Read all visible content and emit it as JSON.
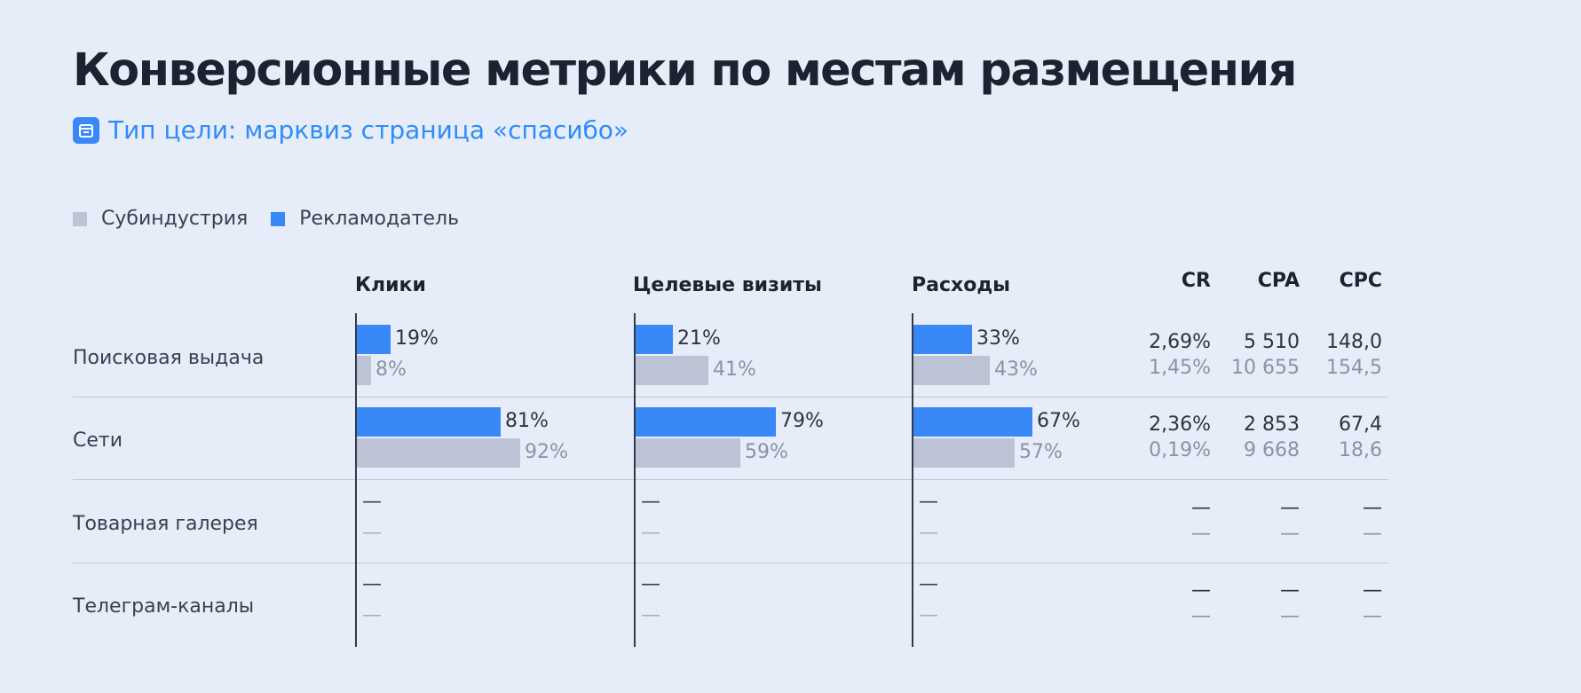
{
  "header": {
    "title": "Конверсионные метрики по местам размещения",
    "subtitle": "Тип цели: марквиз страница «спасибо»",
    "icon": "goal-icon"
  },
  "legend": [
    {
      "label": "Субиндустрия",
      "color": "#bcc3d4"
    },
    {
      "label": "Рекламодатель",
      "color": "#3888f8"
    }
  ],
  "chart_data": {
    "type": "bar",
    "categories": [
      "Поисковая выдача",
      "Сети",
      "Товарная галерея",
      "Телеграм-каналы"
    ],
    "columns": [
      {
        "title": "Клики",
        "series": [
          {
            "name": "Рекламодатель",
            "values": [
              19,
              81,
              null,
              null
            ],
            "labels": [
              "19%",
              "81%",
              "—",
              "—"
            ]
          },
          {
            "name": "Субиндустрия",
            "values": [
              8,
              92,
              null,
              null
            ],
            "labels": [
              "8%",
              "92%",
              "—",
              "—"
            ]
          }
        ]
      },
      {
        "title": "Целевые визиты",
        "series": [
          {
            "name": "Рекламодатель",
            "values": [
              21,
              79,
              null,
              null
            ],
            "labels": [
              "21%",
              "79%",
              "—",
              "—"
            ]
          },
          {
            "name": "Субиндустрия",
            "values": [
              41,
              59,
              null,
              null
            ],
            "labels": [
              "41%",
              "59%",
              "—",
              "—"
            ]
          }
        ]
      },
      {
        "title": "Расходы",
        "series": [
          {
            "name": "Рекламодатель",
            "values": [
              33,
              67,
              null,
              null
            ],
            "labels": [
              "33%",
              "67%",
              "—",
              "—"
            ]
          },
          {
            "name": "Субиндустрия",
            "values": [
              43,
              57,
              null,
              null
            ],
            "labels": [
              "43%",
              "57%",
              "—",
              "—"
            ]
          }
        ]
      }
    ],
    "metrics": [
      {
        "title": "CR",
        "advertiser": [
          "2,69%",
          "2,36%",
          "—",
          "—"
        ],
        "subindustry": [
          "1,45%",
          "0,19%",
          "—",
          "—"
        ]
      },
      {
        "title": "CPA",
        "advertiser": [
          "5 510",
          "2 853",
          "—",
          "—"
        ],
        "subindustry": [
          "10 655",
          "9 668",
          "—",
          "—"
        ]
      },
      {
        "title": "CPC",
        "advertiser": [
          "148,0",
          "67,4",
          "—",
          "—"
        ],
        "subindustry": [
          "154,5",
          "18,6",
          "—",
          "—"
        ]
      }
    ],
    "xlim": [
      0,
      100
    ]
  }
}
